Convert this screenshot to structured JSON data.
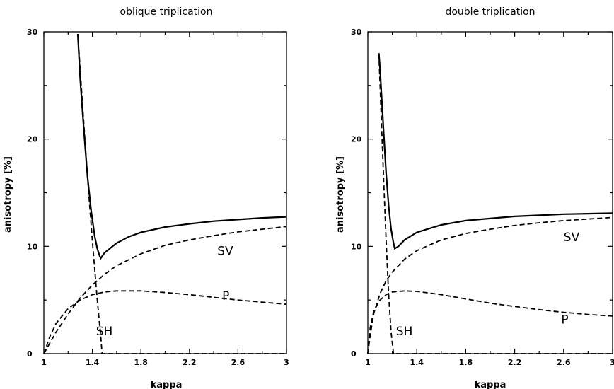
{
  "chart_data": [
    {
      "type": "line",
      "title": "oblique triplication",
      "xlabel": "kappa",
      "ylabel": "anisotropy [%]",
      "xlim": [
        1,
        3
      ],
      "ylim": [
        0,
        30
      ],
      "xticks": [
        "1",
        "1.4",
        "1.8",
        "2.2",
        "2.6",
        "3"
      ],
      "yticks": [
        "0",
        "10",
        "20",
        "30"
      ],
      "grid": false,
      "series": [
        {
          "style": "solid",
          "color": "#000000",
          "x": [
            1.28,
            1.3,
            1.33,
            1.36,
            1.39,
            1.42,
            1.44,
            1.46,
            1.47,
            1.5,
            1.6,
            1.7,
            1.8,
            2.0,
            2.2,
            2.4,
            2.6,
            2.8,
            3.0
          ],
          "y": [
            29.8,
            25.5,
            20.8,
            16.5,
            13.3,
            10.9,
            9.8,
            9.1,
            8.9,
            9.4,
            10.3,
            10.9,
            11.3,
            11.8,
            12.1,
            12.35,
            12.5,
            12.65,
            12.75
          ]
        },
        {
          "name": "SV",
          "style": "dashed",
          "color": "#000000",
          "x": [
            1.0,
            1.05,
            1.1,
            1.2,
            1.3,
            1.4,
            1.5,
            1.6,
            1.8,
            2.0,
            2.2,
            2.4,
            2.6,
            2.8,
            3.0
          ],
          "y": [
            0.0,
            1.0,
            2.0,
            3.7,
            5.2,
            6.4,
            7.4,
            8.2,
            9.3,
            10.1,
            10.6,
            11.0,
            11.35,
            11.6,
            11.85
          ]
        },
        {
          "name": "P",
          "style": "dashed",
          "color": "#000000",
          "x": [
            1.0,
            1.05,
            1.1,
            1.2,
            1.3,
            1.4,
            1.5,
            1.6,
            1.8,
            2.0,
            2.2,
            2.4,
            2.6,
            2.8,
            3.0
          ],
          "y": [
            0.0,
            1.6,
            2.8,
            4.2,
            5.0,
            5.5,
            5.75,
            5.85,
            5.85,
            5.7,
            5.5,
            5.25,
            5.0,
            4.8,
            4.6
          ]
        },
        {
          "name": "SH",
          "style": "dashed",
          "color": "#000000",
          "x": [
            1.28,
            1.32,
            1.36,
            1.4,
            1.44,
            1.47,
            1.48,
            1.6,
            2.0,
            2.5,
            3.0
          ],
          "y": [
            29.8,
            23.0,
            16.5,
            10.5,
            5.0,
            1.5,
            0.0,
            0.0,
            0.0,
            0.0,
            0.0
          ]
        }
      ],
      "annotations": [
        {
          "text": "SV",
          "x": 2.43,
          "y": 9.2
        },
        {
          "text": "P",
          "x": 2.47,
          "y": 5.0
        },
        {
          "text": "SH",
          "x": 1.43,
          "y": 1.7
        }
      ]
    },
    {
      "type": "line",
      "title": "double triplication",
      "xlabel": "kappa",
      "ylabel": "anisotropy [%]",
      "xlim": [
        1,
        3
      ],
      "ylim": [
        0,
        30
      ],
      "xticks": [
        "1",
        "1.4",
        "1.8",
        "2.2",
        "2.6",
        "3"
      ],
      "yticks": [
        "0",
        "10",
        "20",
        "30"
      ],
      "grid": false,
      "series": [
        {
          "style": "solid",
          "color": "#000000",
          "x": [
            1.09,
            1.1,
            1.11,
            1.13,
            1.15,
            1.17,
            1.19,
            1.21,
            1.22,
            1.25,
            1.3,
            1.4,
            1.6,
            1.8,
            2.0,
            2.2,
            2.4,
            2.6,
            2.8,
            3.0
          ],
          "y": [
            28.0,
            26.5,
            24.5,
            20.5,
            16.8,
            13.8,
            11.6,
            10.3,
            9.8,
            10.0,
            10.6,
            11.3,
            12.0,
            12.4,
            12.6,
            12.8,
            12.9,
            13.0,
            13.05,
            13.1
          ]
        },
        {
          "name": "SV",
          "style": "dashed",
          "color": "#000000",
          "x": [
            1.0,
            1.02,
            1.05,
            1.1,
            1.15,
            1.2,
            1.3,
            1.4,
            1.6,
            1.8,
            2.0,
            2.2,
            2.4,
            2.6,
            2.8,
            3.0
          ],
          "y": [
            0.0,
            1.8,
            3.8,
            5.6,
            6.8,
            7.6,
            8.8,
            9.6,
            10.6,
            11.2,
            11.6,
            11.95,
            12.2,
            12.4,
            12.55,
            12.7
          ]
        },
        {
          "name": "P",
          "style": "dashed",
          "color": "#000000",
          "x": [
            1.0,
            1.02,
            1.05,
            1.1,
            1.15,
            1.2,
            1.3,
            1.4,
            1.6,
            1.8,
            2.0,
            2.2,
            2.4,
            2.6,
            2.8,
            3.0
          ],
          "y": [
            0.0,
            2.5,
            4.0,
            5.0,
            5.5,
            5.75,
            5.85,
            5.8,
            5.5,
            5.1,
            4.7,
            4.4,
            4.1,
            3.85,
            3.65,
            3.5
          ]
        },
        {
          "name": "SH",
          "style": "dashed",
          "color": "#000000",
          "x": [
            1.09,
            1.11,
            1.13,
            1.15,
            1.17,
            1.19,
            1.21,
            1.5,
            2.0,
            2.5,
            3.0
          ],
          "y": [
            28.0,
            22.0,
            16.0,
            10.5,
            5.5,
            2.0,
            0.0,
            0.0,
            0.0,
            0.0,
            0.0
          ]
        }
      ],
      "annotations": [
        {
          "text": "SV",
          "x": 2.6,
          "y": 10.5
        },
        {
          "text": "P",
          "x": 2.58,
          "y": 2.8
        },
        {
          "text": "SH",
          "x": 1.23,
          "y": 1.7
        }
      ]
    }
  ]
}
